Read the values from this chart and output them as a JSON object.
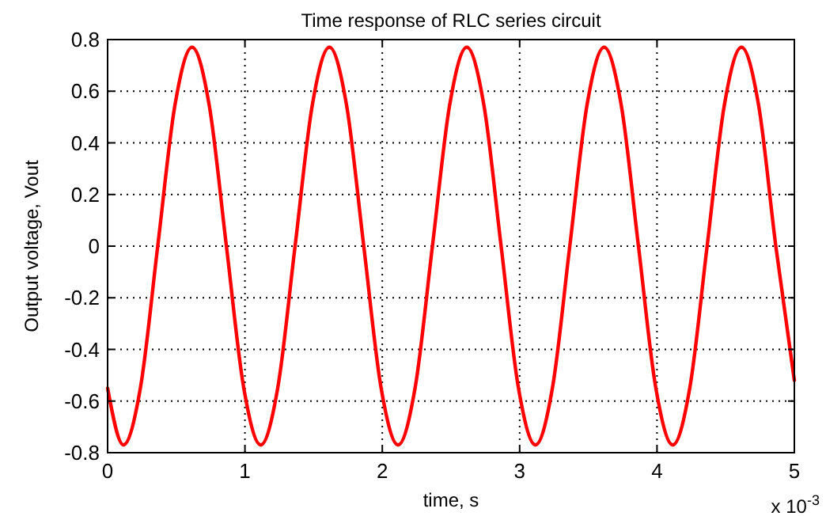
{
  "chart_data": {
    "type": "line",
    "title": "Time response of RLC series circuit",
    "xlabel": "time, s",
    "ylabel": "Output voltage, Vout",
    "annotations": [
      "x 10$^{-3}$"
    ],
    "xlim": [
      0,
      5
    ],
    "xticks": [
      0,
      1,
      2,
      3,
      4,
      5
    ],
    "ylim": [
      -0.8,
      0.8
    ],
    "yticks": [
      -0.8,
      -0.6,
      -0.4,
      -0.2,
      0,
      0.2,
      0.4,
      0.6,
      0.8
    ],
    "grid": true,
    "line_style": "solid",
    "marker": "none",
    "series": [
      {
        "color": "#ff0000",
        "x": [
          0,
          0.115,
          0.24,
          0.365,
          0.49,
          0.615,
          0.74,
          0.865,
          0.99,
          1.115,
          1.24,
          1.365,
          1.49,
          1.615,
          1.74,
          1.865,
          1.99,
          2.115,
          2.24,
          2.365,
          2.49,
          2.615,
          2.74,
          2.865,
          2.99,
          3.115,
          3.24,
          3.365,
          3.49,
          3.615,
          3.74,
          3.865,
          3.99,
          4.115,
          4.24,
          4.365,
          4.49,
          4.615,
          4.74,
          4.865,
          5
        ],
        "values": [
          -0.55,
          -0.77,
          -0.545,
          0,
          0.545,
          0.77,
          0.545,
          0,
          -0.545,
          -0.77,
          -0.545,
          0,
          0.545,
          0.77,
          0.545,
          0,
          -0.545,
          -0.77,
          -0.545,
          0,
          0.545,
          0.77,
          0.545,
          0,
          -0.545,
          -0.77,
          -0.545,
          0,
          0.545,
          0.77,
          0.545,
          0,
          -0.545,
          -0.77,
          -0.545,
          0,
          0.545,
          0.77,
          0.545,
          0,
          -0.52
        ]
      }
    ]
  }
}
